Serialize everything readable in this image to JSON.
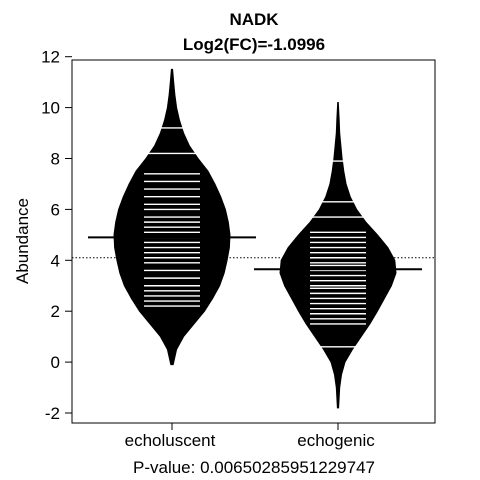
{
  "chart_data": {
    "type": "beanplot",
    "title": "NADK",
    "subtitle": "Log2(FC)=-1.0996",
    "xlabel": "P-value: 0.00650285951229747",
    "ylabel": "Abundance",
    "ylim": [
      -2,
      12
    ],
    "yticks": [
      -2,
      0,
      2,
      4,
      6,
      8,
      10,
      12
    ],
    "grid": false,
    "overall_mean": 4.1,
    "groups": [
      {
        "name": "echoluscent",
        "mean": 4.9,
        "min": -0.1,
        "max": 11.5,
        "density": [
          [
            -0.1,
            0.02
          ],
          [
            0.5,
            0.08
          ],
          [
            1.0,
            0.2
          ],
          [
            1.5,
            0.38
          ],
          [
            2.0,
            0.56
          ],
          [
            2.5,
            0.7
          ],
          [
            3.0,
            0.82
          ],
          [
            3.5,
            0.9
          ],
          [
            4.0,
            0.95
          ],
          [
            4.5,
            0.99
          ],
          [
            5.0,
            1.0
          ],
          [
            5.5,
            0.97
          ],
          [
            6.0,
            0.92
          ],
          [
            6.5,
            0.84
          ],
          [
            7.0,
            0.74
          ],
          [
            7.5,
            0.62
          ],
          [
            8.0,
            0.45
          ],
          [
            8.5,
            0.3
          ],
          [
            9.0,
            0.2
          ],
          [
            9.5,
            0.13
          ],
          [
            10.0,
            0.08
          ],
          [
            10.5,
            0.05
          ],
          [
            11.0,
            0.03
          ],
          [
            11.5,
            0.01
          ]
        ],
        "observations": [
          2.2,
          2.4,
          2.6,
          2.8,
          3.0,
          3.3,
          3.6,
          3.9,
          4.1,
          4.3,
          4.5,
          4.7,
          4.9,
          5.1,
          5.3,
          5.5,
          5.7,
          6.0,
          6.2,
          6.5,
          6.8,
          7.1,
          7.4,
          8.2,
          9.2
        ]
      },
      {
        "name": "echogenic",
        "mean": 3.65,
        "min": -1.8,
        "max": 10.2,
        "density": [
          [
            -1.8,
            0.01
          ],
          [
            -1.0,
            0.03
          ],
          [
            -0.5,
            0.06
          ],
          [
            0.0,
            0.12
          ],
          [
            0.5,
            0.25
          ],
          [
            1.0,
            0.4
          ],
          [
            1.5,
            0.55
          ],
          [
            2.0,
            0.68
          ],
          [
            2.5,
            0.8
          ],
          [
            3.0,
            0.92
          ],
          [
            3.5,
            1.0
          ],
          [
            4.0,
            0.98
          ],
          [
            4.5,
            0.86
          ],
          [
            5.0,
            0.68
          ],
          [
            5.5,
            0.48
          ],
          [
            6.0,
            0.32
          ],
          [
            6.5,
            0.21
          ],
          [
            7.0,
            0.14
          ],
          [
            7.5,
            0.1
          ],
          [
            8.0,
            0.07
          ],
          [
            8.5,
            0.05
          ],
          [
            9.0,
            0.03
          ],
          [
            9.5,
            0.02
          ],
          [
            10.2,
            0.005
          ]
        ],
        "observations": [
          0.6,
          1.5,
          1.7,
          1.9,
          2.1,
          2.3,
          2.5,
          2.7,
          2.9,
          3.0,
          3.2,
          3.4,
          3.6,
          3.8,
          3.9,
          4.1,
          4.3,
          4.5,
          4.7,
          4.9,
          5.1,
          5.7,
          6.3,
          7.9
        ]
      }
    ]
  }
}
